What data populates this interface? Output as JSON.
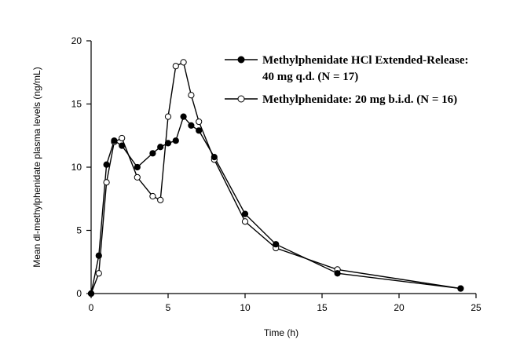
{
  "chart_data": {
    "type": "line",
    "xlabel": "Time (h)",
    "ylabel": "Mean dl-methylphenidate plasma levels (ng/mL)",
    "xlim": [
      0,
      25
    ],
    "ylim": [
      0,
      20
    ],
    "xticks": [
      0,
      5,
      10,
      15,
      20,
      25
    ],
    "yticks": [
      0,
      5,
      10,
      15,
      20
    ],
    "grid": false,
    "legend_position": "top-right",
    "series": [
      {
        "name_lines": [
          "Methylphenidate HCl Extended-Release:",
          "40 mg q.d. (N = 17)"
        ],
        "marker": "filled-circle",
        "x": [
          0,
          0.5,
          1,
          1.5,
          2,
          3,
          4,
          4.5,
          5,
          5.5,
          6,
          6.5,
          7,
          8,
          10,
          12,
          16,
          24
        ],
        "y": [
          0,
          3.0,
          10.2,
          12.1,
          11.7,
          10.0,
          11.1,
          11.6,
          11.9,
          12.1,
          14.0,
          13.3,
          12.9,
          10.8,
          6.3,
          3.9,
          1.6,
          0.4
        ]
      },
      {
        "name_lines": [
          "Methylphenidate: 20 mg b.i.d. (N = 16)"
        ],
        "marker": "open-circle",
        "x": [
          0,
          0.5,
          1,
          1.5,
          2,
          3,
          4,
          4.5,
          5,
          5.5,
          6,
          6.5,
          7,
          8,
          10,
          12,
          16,
          24
        ],
        "y": [
          0,
          1.6,
          8.8,
          12.0,
          12.3,
          9.2,
          7.7,
          7.4,
          14.0,
          18.0,
          18.3,
          15.7,
          13.6,
          10.6,
          5.7,
          3.6,
          1.9,
          0.4
        ]
      }
    ]
  }
}
